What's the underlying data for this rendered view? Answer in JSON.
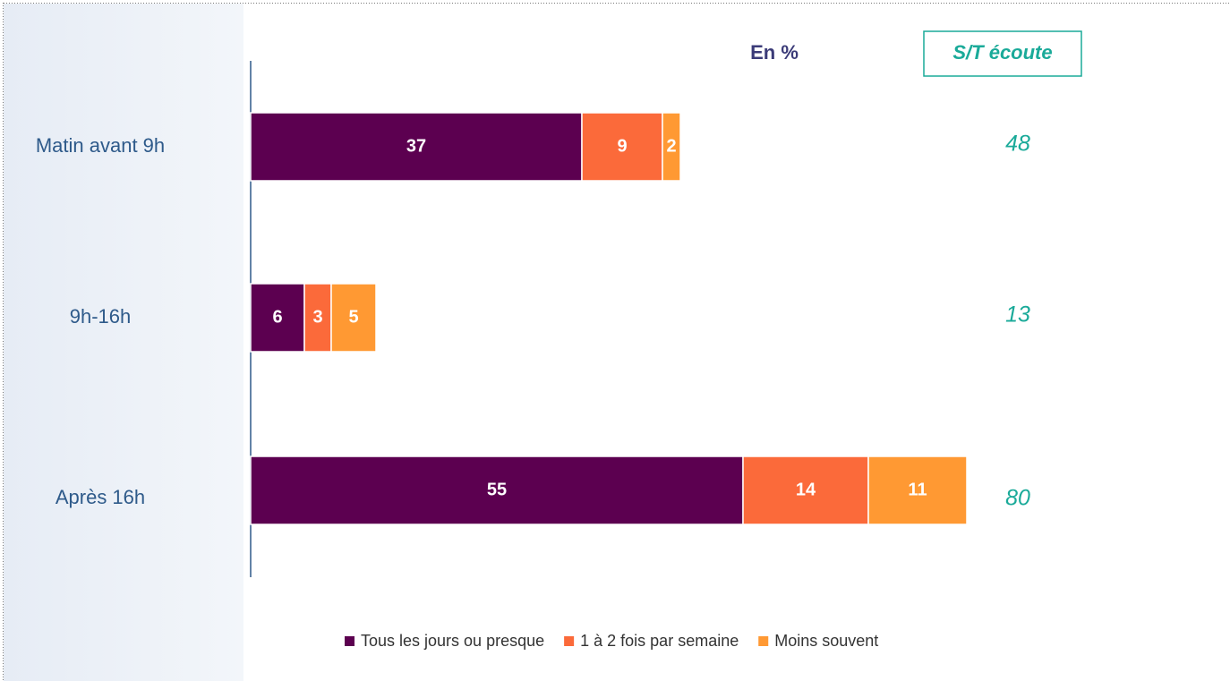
{
  "chart_data": {
    "type": "bar",
    "orientation": "horizontal",
    "stacked": true,
    "unit_label": "En %",
    "categories": [
      "Matin avant 9h",
      "9h-16h",
      "Après 16h"
    ],
    "series": [
      {
        "name": "Tous les jours ou presque",
        "color": "#5c0050",
        "values": [
          37,
          6,
          55
        ]
      },
      {
        "name": "1 à 2 fois par semaine",
        "color": "#fb6a3a",
        "values": [
          9,
          3,
          14
        ]
      },
      {
        "name": "Moins souvent",
        "color": "#ff9933",
        "values": [
          2,
          5,
          11
        ]
      }
    ],
    "totals": {
      "title": "S/T écoute",
      "values": [
        48,
        13,
        80
      ],
      "color": "#1aaa99"
    },
    "legend": "bottom"
  }
}
